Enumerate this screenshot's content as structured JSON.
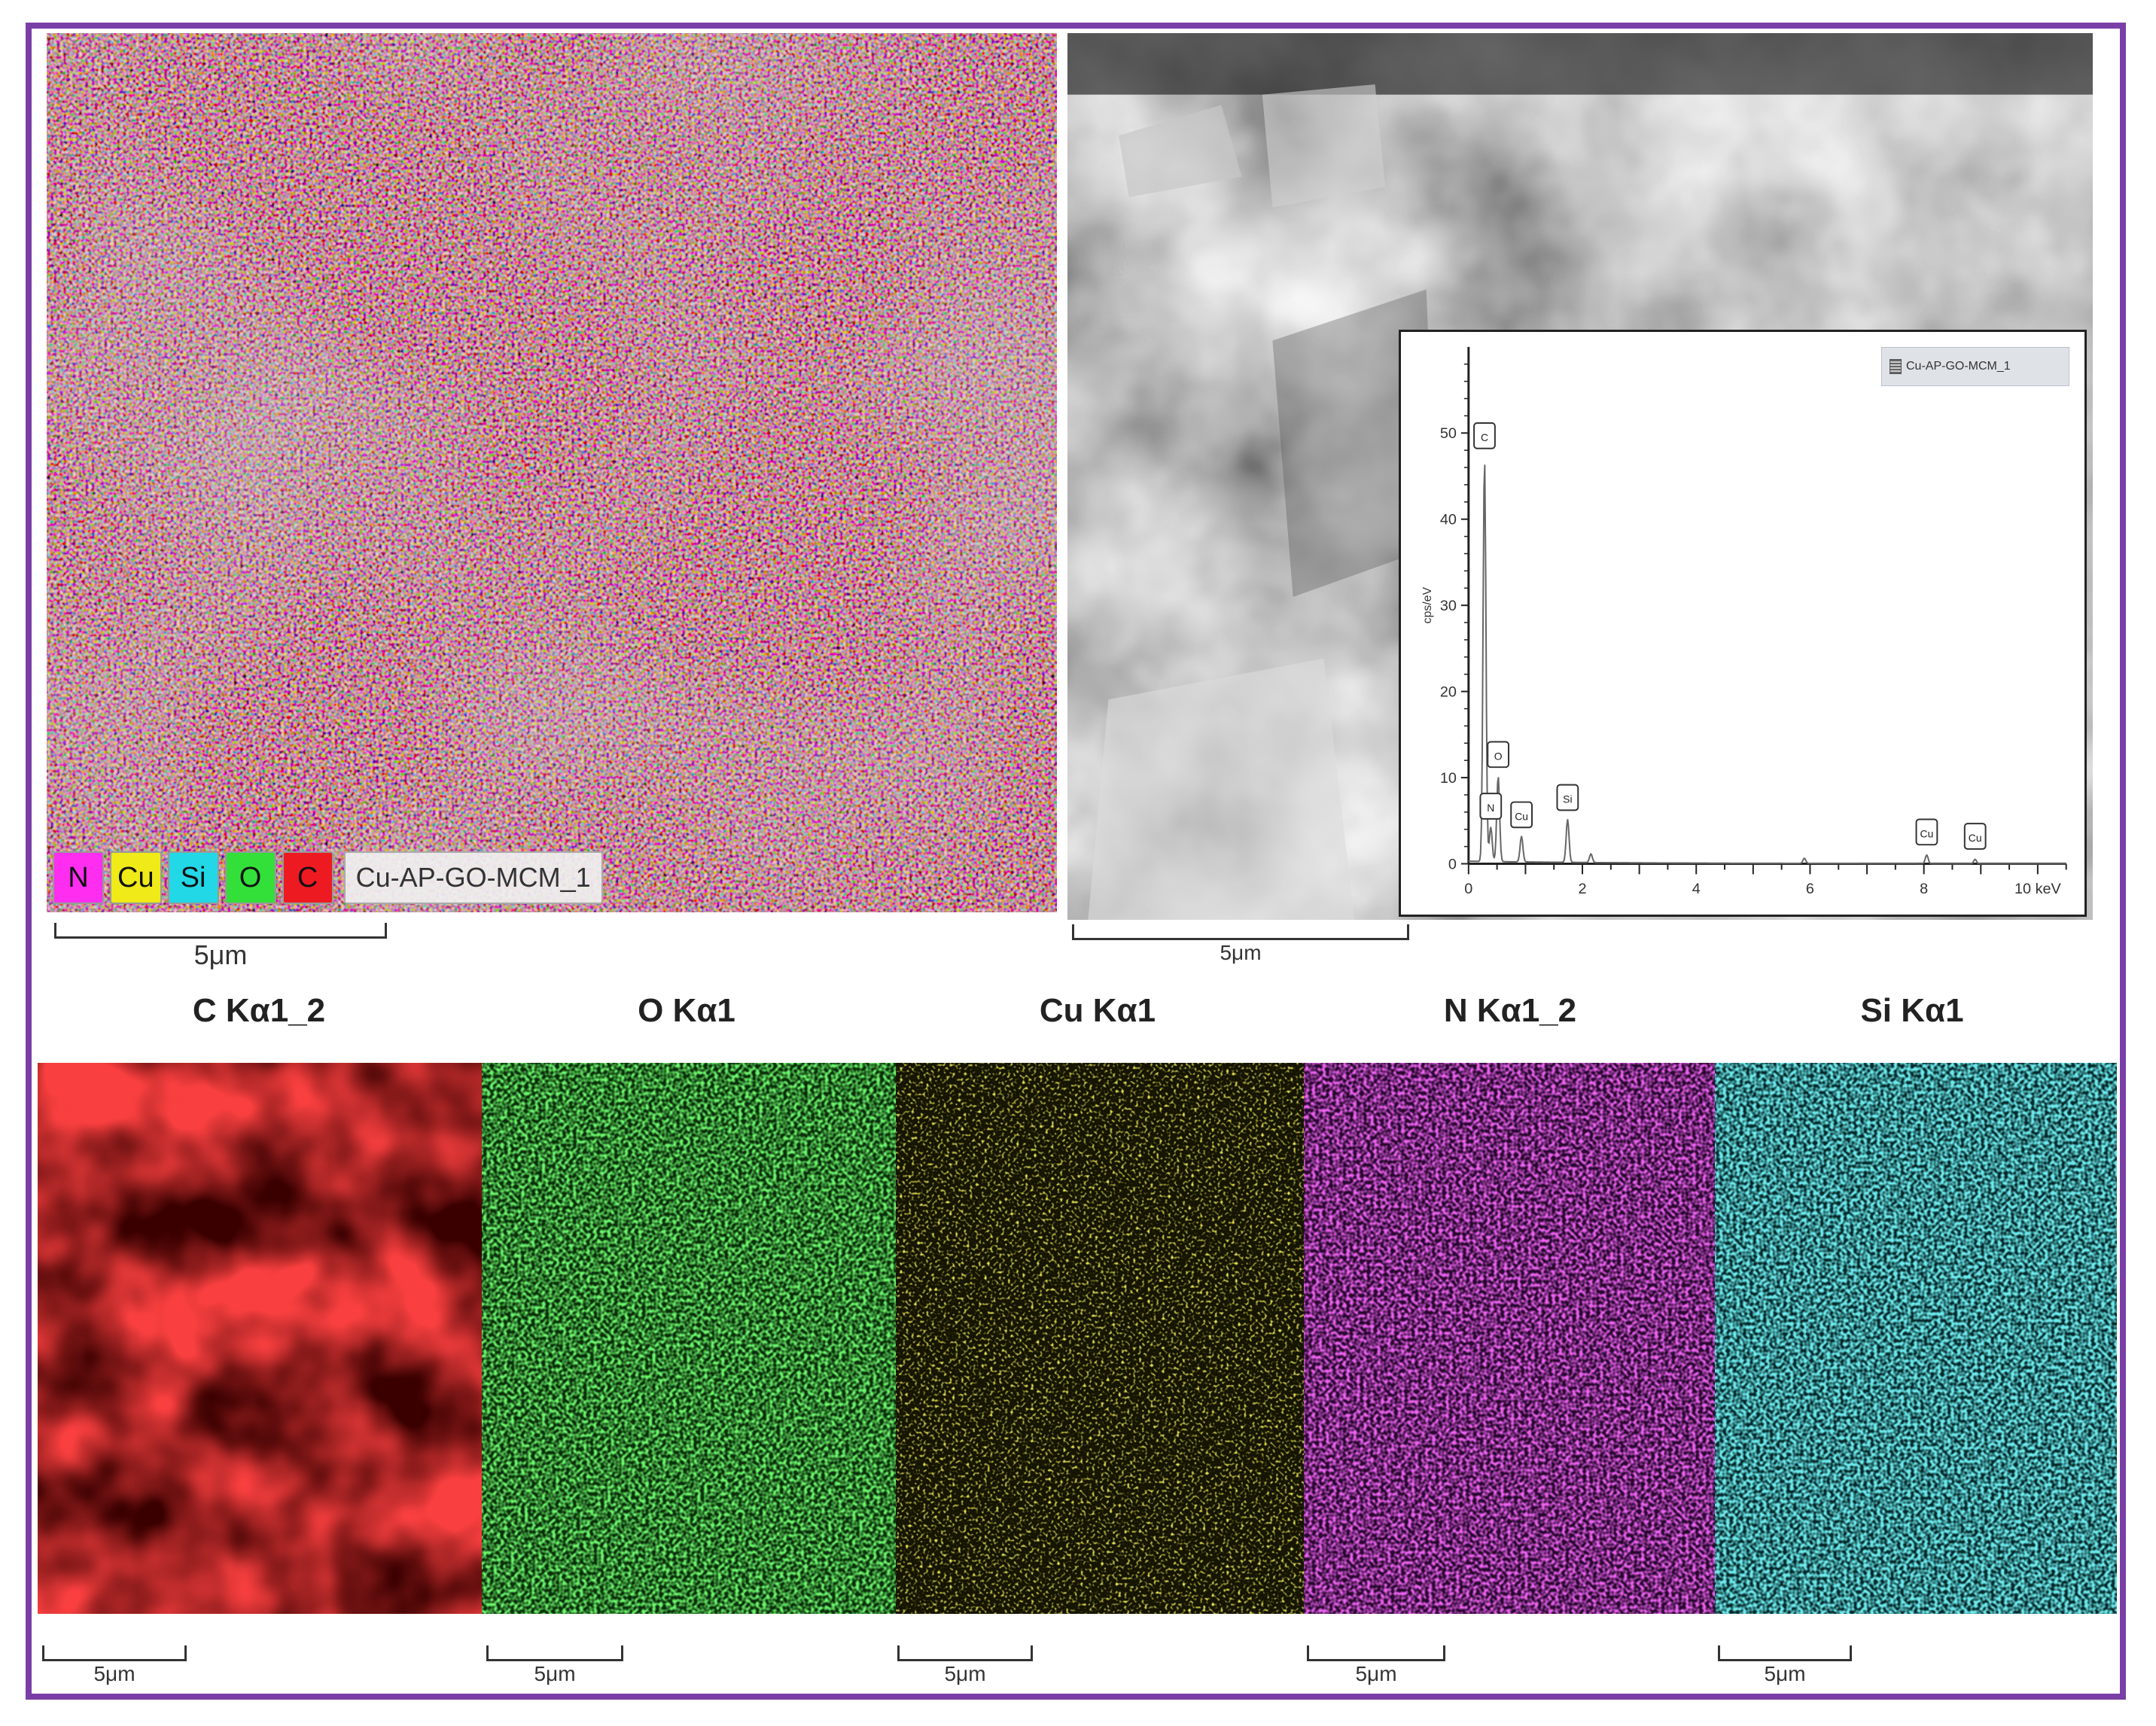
{
  "composite_map": {
    "legend": [
      {
        "symbol": "N",
        "color": "#ff2df0"
      },
      {
        "symbol": "Cu",
        "color": "#f0ea18"
      },
      {
        "symbol": "Si",
        "color": "#22d8e6"
      },
      {
        "symbol": "O",
        "color": "#33e03a"
      },
      {
        "symbol": "C",
        "color": "#ee1a22"
      }
    ],
    "title": "Cu-AP-GO-MCM_1",
    "scale_label": "5μm"
  },
  "sem_image": {
    "scale_label": "5μm"
  },
  "eds_spectrum": {
    "legend_label": "Cu-AP-GO-MCM_1",
    "y_axis_label": "cps/eV",
    "x_unit": "keV",
    "x_ticks": [
      "0",
      "2",
      "4",
      "6",
      "8",
      "10 keV"
    ],
    "y_ticks": [
      "0",
      "10",
      "20",
      "30",
      "40",
      "50"
    ]
  },
  "chart_data": {
    "type": "line",
    "xlabel": "keV",
    "ylabel": "cps/eV",
    "xlim": [
      0,
      10.5
    ],
    "ylim": [
      0,
      60
    ],
    "peaks": [
      {
        "element": "C",
        "x": 0.28,
        "y": 47
      },
      {
        "element": "N",
        "x": 0.39,
        "y": 4
      },
      {
        "element": "O",
        "x": 0.52,
        "y": 10
      },
      {
        "element": "Cu",
        "x": 0.93,
        "y": 3
      },
      {
        "element": "Si",
        "x": 1.74,
        "y": 5
      },
      {
        "element": "Cu",
        "x": 8.05,
        "y": 1
      },
      {
        "element": "Cu",
        "x": 8.9,
        "y": 0.5
      }
    ],
    "minor_peaks": [
      {
        "x": 2.15,
        "y": 1.0
      },
      {
        "x": 5.9,
        "y": 0.6
      }
    ]
  },
  "element_maps": [
    {
      "label": "C Kα1_2",
      "color": "#ee1111",
      "scale_label": "5μm"
    },
    {
      "label": "O Kα1",
      "color": "#22dd22",
      "scale_label": "5μm"
    },
    {
      "label": "Cu Kα1",
      "color": "#c8c21a",
      "scale_label": "5μm"
    },
    {
      "label": "N Kα1_2",
      "color": "#d020d8",
      "scale_label": "5μm"
    },
    {
      "label": "Si Kα1",
      "color": "#22c8cc",
      "scale_label": "5μm"
    }
  ]
}
